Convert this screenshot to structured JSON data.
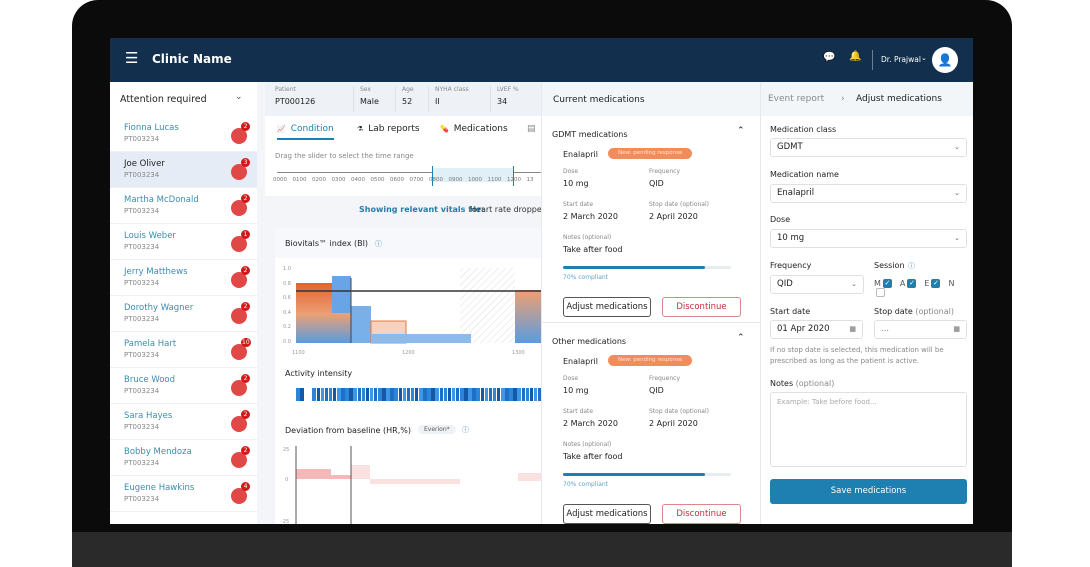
{
  "header": {
    "title": "Clinic Name",
    "user": "Dr. Prajwal",
    "menu_icon": "hamburger-icon",
    "chat_icon": "chat-icon",
    "bell_icon": "bell-icon",
    "avatar_icon": "user-avatar-icon"
  },
  "sidebar": {
    "title": "Attention required",
    "patients": [
      {
        "name": "Fionna Lucas",
        "id": "PT003234",
        "count": "2"
      },
      {
        "name": "Joe Oliver",
        "id": "PT003234",
        "count": "3",
        "selected": true
      },
      {
        "name": "Martha McDonald",
        "id": "PT003234",
        "count": "2"
      },
      {
        "name": "Louis Weber",
        "id": "PT003234",
        "count": "1"
      },
      {
        "name": "Jerry Matthews",
        "id": "PT003234",
        "count": "2"
      },
      {
        "name": "Dorothy Wagner",
        "id": "PT003234",
        "count": "2"
      },
      {
        "name": "Pamela Hart",
        "id": "PT003234",
        "count": "10"
      },
      {
        "name": "Bruce Wood",
        "id": "PT003234",
        "count": "2"
      },
      {
        "name": "Sara Hayes",
        "id": "PT003234",
        "count": "2"
      },
      {
        "name": "Bobby Mendoza",
        "id": "PT003234",
        "count": "2"
      },
      {
        "name": "Eugene Hawkins",
        "id": "PT003234",
        "count": "4"
      }
    ]
  },
  "patient": {
    "fields": [
      {
        "label": "Patient",
        "value": "PT000126"
      },
      {
        "label": "Sex",
        "value": "Male"
      },
      {
        "label": "Age",
        "value": "52"
      },
      {
        "label": "NYHA class",
        "value": "II"
      },
      {
        "label": "LVEF %",
        "value": "34"
      }
    ],
    "tabs": [
      {
        "label": "Condition",
        "active": true
      },
      {
        "label": "Lab reports"
      },
      {
        "label": "Medications"
      }
    ],
    "slider_hint": "Drag the slider to select the time range",
    "slider_ticks": [
      "0000",
      "0100",
      "0200",
      "0300",
      "0400",
      "0500",
      "0600",
      "0700",
      "0800",
      "0900",
      "1000",
      "1100",
      "1200",
      "13"
    ],
    "showing_label": "Showing relevant vitals for:",
    "showing_value": "Heart rate droppe",
    "bi_title": "Biovitals™ index (BI)",
    "bi_yticks": [
      "1.0",
      "0.8",
      "0.6",
      "0.4",
      "0.2",
      "0.0"
    ],
    "xticks": [
      "1100",
      "1200",
      "1300"
    ],
    "activity_title": "Activity intensity",
    "deviation_title": "Deviation from baseline (HR,%)",
    "deviation_tag": "Everion*",
    "dev_yticks": [
      "25",
      "0",
      "-25"
    ]
  },
  "current": {
    "title": "Current medications",
    "sections": [
      {
        "title": "GDMT medications",
        "drug": "Enalapril",
        "status": "New: pending response",
        "dose_label": "Dose",
        "dose": "10 mg",
        "freq_label": "Frequency",
        "freq": "QID",
        "start_label": "Start date",
        "start": "2 March 2020",
        "stop_label": "Stop date (optional)",
        "stop": "2 April 2020",
        "notes_label": "Notes (optional)",
        "notes": "Take after food",
        "compliance": 70,
        "compliance_label": "70% compliant"
      },
      {
        "title": "Other medications",
        "drug": "Enalapril",
        "status": "New: pending response",
        "dose_label": "Dose",
        "dose": "10 mg",
        "freq_label": "Frequency",
        "freq": "QID",
        "start_label": "Start date",
        "start": "2 March 2020",
        "stop_label": "Stop date (optional)",
        "stop": "2 April 2020",
        "notes_label": "Notes (optional)",
        "notes": "Take after food",
        "compliance": 70,
        "compliance_label": "70% compliant"
      }
    ],
    "adjust_label": "Adjust medications",
    "discontinue_label": "Discontinue"
  },
  "adjust": {
    "breadcrumb_parent": "Event report",
    "breadcrumb_current": "Adjust medications",
    "class_label": "Medication class",
    "class_value": "GDMT",
    "name_label": "Medication name",
    "name_value": "Enalapril",
    "dose_label": "Dose",
    "dose_value": "10 mg",
    "freq_label": "Frequency",
    "freq_value": "QID",
    "session_label": "Session",
    "sessions": [
      {
        "label": "M",
        "checked": true
      },
      {
        "label": "A",
        "checked": true
      },
      {
        "label": "E",
        "checked": true
      },
      {
        "label": "N",
        "checked": false
      }
    ],
    "start_label": "Start date",
    "start_value": "01 Apr 2020",
    "stop_label": "Stop date",
    "stop_optional": "(optional)",
    "stop_placeholder": "...",
    "stop_hint": "If no stop date is selected, this medication will be prescribed as long as the patient is active.",
    "notes_label": "Notes",
    "notes_optional": "(optional)",
    "notes_placeholder": "Example: Take before food...",
    "save_label": "Save medications"
  },
  "colors": {
    "header": "#12304d",
    "accent": "#1e7fb1",
    "pill": "#f28c5b",
    "alert": "#e04848",
    "discontinue": "#c0303a"
  }
}
